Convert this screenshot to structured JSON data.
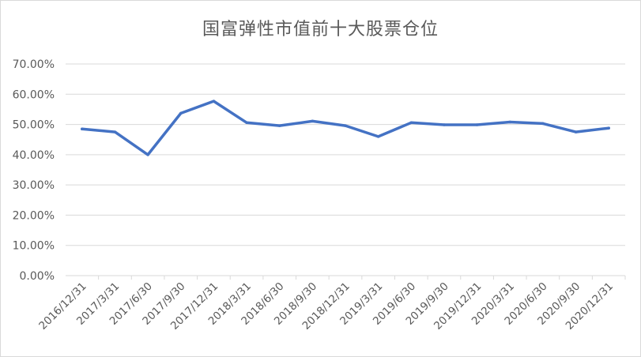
{
  "chart_data": {
    "type": "line",
    "title": "国富弹性市值前十大股票仓位",
    "categories": [
      "2016/12/31",
      "2017/3/31",
      "2017/6/30",
      "2017/9/30",
      "2017/12/31",
      "2018/3/31",
      "2018/6/30",
      "2018/9/30",
      "2018/12/31",
      "2019/3/31",
      "2019/6/30",
      "2019/9/30",
      "2019/12/31",
      "2020/3/31",
      "2020/6/30",
      "2020/9/30",
      "2020/12/31"
    ],
    "series": [
      {
        "values": [
          48.5,
          47.5,
          40.0,
          53.7,
          57.7,
          50.6,
          49.6,
          51.1,
          49.6,
          46.0,
          50.6,
          49.9,
          49.9,
          50.8,
          50.3,
          47.5,
          48.8
        ]
      }
    ],
    "ylim": [
      0,
      70
    ],
    "yticks": [
      "0.00%",
      "10.00%",
      "20.00%",
      "30.00%",
      "40.00%",
      "50.00%",
      "60.00%",
      "70.00%"
    ],
    "grid": true,
    "colors": {
      "line": "#4472c4",
      "grid": "#d9d9d9",
      "text": "#595959"
    }
  }
}
